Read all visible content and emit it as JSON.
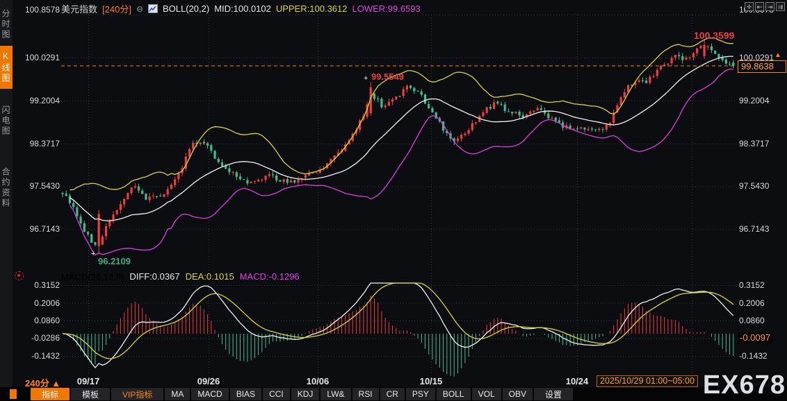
{
  "header": {
    "symbol": "美元指数",
    "period_tag": "[240分]",
    "collapse_icon": "⊖",
    "boll_label": "BOLL(20,2)",
    "mid_label": "MID:100.0102",
    "upper_label": "UPPER:100.3612",
    "lower_label": "LOWER:99.6593"
  },
  "sidebar": {
    "tabs": [
      {
        "label": "分时图",
        "active": false
      },
      {
        "label": "K线图",
        "active": true
      },
      {
        "label": "闪电图",
        "active": false
      },
      {
        "label": "合约资料",
        "active": false
      }
    ]
  },
  "top_icons": {
    "i1": "✛",
    "i2": "⇤",
    "i3": "⇥",
    "i4": "⇉"
  },
  "main_axis": {
    "labels": [
      "100.8578",
      "100.0291",
      "99.2004",
      "98.3717",
      "97.5430",
      "96.7143"
    ]
  },
  "macd_axis": {
    "labels": [
      "0.3152",
      "0.2006",
      "0.0860",
      "-0.0286",
      "-0.1432"
    ]
  },
  "macd_axis_right": {
    "labels": [
      "0.3152",
      "0.2006",
      "0.0860",
      "-0.1432"
    ]
  },
  "annotations": {
    "high": "100.3599",
    "swing_high": "99.5549",
    "low": "96.2109",
    "marker_glyph": "+"
  },
  "price_badge": {
    "value": "99.8638",
    "arrow": "▲"
  },
  "macd_badge": {
    "value": "-0.0097"
  },
  "macd_header": {
    "name": "MACD(26,12,9)",
    "diff": "DIFF:0.0367",
    "dea": "DEA:0.1015",
    "macd": "MACD:-0.1296"
  },
  "xaxis": {
    "period": "240分 ▲",
    "dates": [
      "09/17",
      "09/26",
      "10/06",
      "10/15",
      "10/24"
    ],
    "current": "2025/10/29 01:00~05:00"
  },
  "toolbar": {
    "items": [
      {
        "label": "指标"
      },
      {
        "label": "模板"
      },
      {
        "label": "VIP指标"
      },
      {
        "label": "MA"
      },
      {
        "label": "MACD"
      },
      {
        "label": "BIAS"
      },
      {
        "label": "CCI"
      },
      {
        "label": "KDJ"
      },
      {
        "label": "LW&"
      },
      {
        "label": "RSI"
      },
      {
        "label": "CR"
      },
      {
        "label": "PSY"
      },
      {
        "label": "BOLL"
      },
      {
        "label": "VOL"
      },
      {
        "label": "OBV"
      },
      {
        "label": "设置"
      }
    ]
  },
  "watermark": "EX678",
  "colors": {
    "background": "#0c0d10",
    "up": "#ee3d3d",
    "down": "#3fbf8f",
    "boll_upper": "#d8d826",
    "boll_mid": "#f2f2f2",
    "boll_lower": "#dd3cdd",
    "diff_line": "#f2f2f2",
    "dea_line": "#d8d826",
    "accent_orange": "#f07800",
    "grid": "#383b42",
    "current_price_line": "#f08c00"
  },
  "chart_data": {
    "type": "candlestick",
    "title": "美元指数 240分 K线图 + BOLL(20,2) + MACD(26,12,9)",
    "candle_count": 186,
    "key_points": {
      "low": 96.2109,
      "swing_high": 99.5549,
      "high": 100.3599,
      "last_price": 99.8638
    },
    "indicators": {
      "boll": {
        "params": [
          20,
          2
        ],
        "mid": 100.0102,
        "upper": 100.3612,
        "lower": 99.6593
      },
      "macd": {
        "params": [
          26,
          12,
          9
        ],
        "diff": 0.0367,
        "dea": 0.1015,
        "macd": -0.1296,
        "last_hist": -0.0097
      }
    },
    "y_axis_main": {
      "ticks": [
        100.8578,
        100.0291,
        99.2004,
        98.3717,
        97.543,
        96.7143
      ]
    },
    "y_axis_macd": {
      "ticks": [
        0.3152,
        0.2006,
        0.086,
        -0.0286,
        -0.1432
      ],
      "zero": 0
    },
    "x_axis": {
      "dates": [
        "09/17",
        "09/26",
        "10/06",
        "10/15",
        "10/24"
      ],
      "date_fracs": [
        0.04,
        0.219,
        0.38,
        0.548,
        0.765
      ],
      "current_frac": 0.935,
      "current": "2025/10/29 01:00~05:00"
    },
    "grid": "dotted",
    "price_path": [
      [
        0.0,
        97.4
      ],
      [
        0.015,
        97.15
      ],
      [
        0.03,
        96.75
      ],
      [
        0.05,
        96.35
      ],
      [
        0.065,
        96.75
      ],
      [
        0.085,
        97.15
      ],
      [
        0.105,
        97.55
      ],
      [
        0.125,
        97.3
      ],
      [
        0.15,
        97.4
      ],
      [
        0.175,
        97.8
      ],
      [
        0.195,
        98.4
      ],
      [
        0.215,
        98.3
      ],
      [
        0.235,
        97.95
      ],
      [
        0.26,
        97.7
      ],
      [
        0.285,
        97.6
      ],
      [
        0.31,
        97.75
      ],
      [
        0.335,
        97.6
      ],
      [
        0.36,
        97.7
      ],
      [
        0.385,
        97.85
      ],
      [
        0.405,
        98.1
      ],
      [
        0.425,
        98.4
      ],
      [
        0.445,
        98.8
      ],
      [
        0.46,
        99.35
      ],
      [
        0.475,
        99.1
      ],
      [
        0.495,
        99.25
      ],
      [
        0.515,
        99.45
      ],
      [
        0.53,
        99.35
      ],
      [
        0.55,
        99.0
      ],
      [
        0.57,
        98.6
      ],
      [
        0.585,
        98.4
      ],
      [
        0.605,
        98.65
      ],
      [
        0.625,
        98.95
      ],
      [
        0.645,
        99.15
      ],
      [
        0.665,
        99.0
      ],
      [
        0.685,
        98.9
      ],
      [
        0.705,
        99.05
      ],
      [
        0.725,
        98.85
      ],
      [
        0.745,
        98.7
      ],
      [
        0.765,
        98.6
      ],
      [
        0.785,
        98.7
      ],
      [
        0.8,
        98.6
      ],
      [
        0.815,
        98.75
      ],
      [
        0.825,
        99.1
      ],
      [
        0.84,
        99.45
      ],
      [
        0.855,
        99.6
      ],
      [
        0.87,
        99.55
      ],
      [
        0.885,
        99.75
      ],
      [
        0.9,
        99.9
      ],
      [
        0.915,
        100.05
      ],
      [
        0.93,
        100.0
      ],
      [
        0.945,
        100.15
      ],
      [
        0.96,
        100.28
      ],
      [
        0.975,
        100.05
      ],
      [
        0.99,
        99.9
      ],
      [
        1.0,
        99.8638
      ]
    ]
  }
}
